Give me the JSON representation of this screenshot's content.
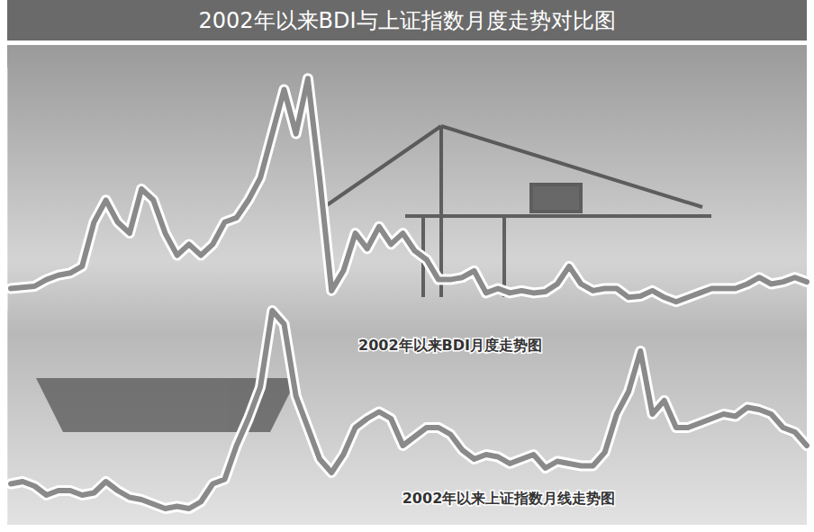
{
  "chart_data": [
    {
      "type": "line",
      "title": "2002年以来BDI与上证指数月度走势对比图",
      "annotations": [
        "2002年以来BDI月度走势图"
      ],
      "color": "#8a8a8a",
      "values": [
        1000,
        1050,
        1100,
        1400,
        1600,
        1700,
        2000,
        4000,
        5000,
        4000,
        3500,
        5500,
        5000,
        3500,
        2500,
        3000,
        2500,
        3000,
        4000,
        4200,
        5000,
        6000,
        8000,
        10000,
        8000,
        10500,
        6000,
        900,
        1800,
        3500,
        2800,
        3800,
        3000,
        3500,
        2700,
        2300,
        1400,
        1400,
        1500,
        1800,
        800,
        1000,
        800,
        900,
        800,
        850,
        1200,
        2000,
        1200,
        900,
        1000,
        1000,
        600,
        650,
        900,
        600,
        400,
        600,
        800,
        1000,
        1000,
        1000,
        1200,
        1500,
        1200,
        1300,
        1500,
        1300
      ],
      "ylim": [
        0,
        11000
      ],
      "grid": false,
      "tick_labels": false
    },
    {
      "type": "line",
      "annotations": [
        "2002年以来上证指数月线走势图"
      ],
      "color": "#8a8a8a",
      "values": [
        1650,
        1700,
        1600,
        1400,
        1500,
        1500,
        1400,
        1450,
        1700,
        1500,
        1350,
        1300,
        1200,
        1100,
        1150,
        1100,
        1250,
        1650,
        1750,
        2500,
        3100,
        3800,
        5500,
        5200,
        3600,
        2900,
        2200,
        1900,
        2300,
        2900,
        3100,
        3250,
        3100,
        2500,
        2700,
        2900,
        2900,
        2750,
        2400,
        2200,
        2300,
        2250,
        2100,
        2200,
        2300,
        2000,
        2150,
        2100,
        2050,
        2050,
        2350,
        3200,
        3700,
        4600,
        3200,
        3500,
        2900,
        2900,
        3000,
        3100,
        3200,
        3150,
        3350,
        3300,
        3200,
        2900,
        2800,
        2500
      ],
      "ylim": [
        800,
        6000
      ],
      "grid": false,
      "tick_labels": false
    }
  ]
}
